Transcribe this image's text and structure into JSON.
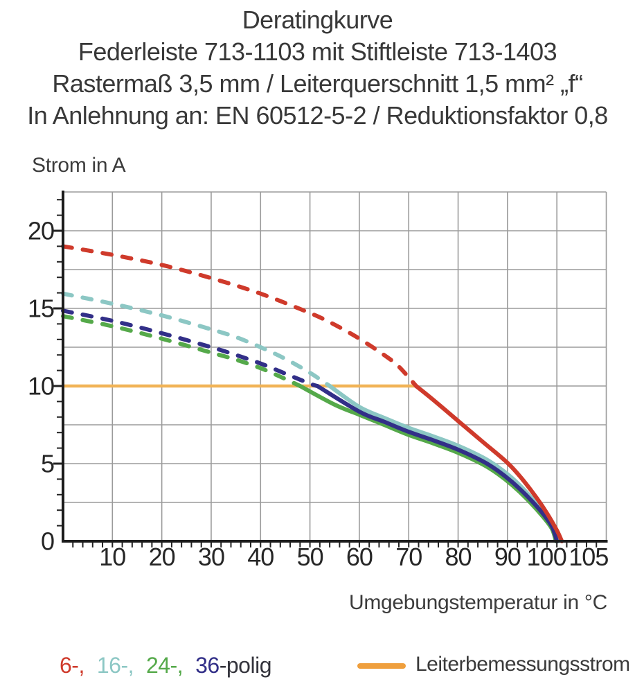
{
  "header": {
    "lines": [
      "Deratingkurve",
      "Federleiste 713-1103 mit Stiftleiste 713-1403",
      "Rastermaß 3,5 mm / Leiterquerschnitt 1,5 mm² „f“",
      "In Anlehnung an: EN 60512-5-2 / Reduktionsfaktor 0,8"
    ]
  },
  "chart_data": {
    "type": "line",
    "ylabel": "Strom in A",
    "xlabel": "Umgebungstemperatur in °C",
    "xlim": [
      0,
      110
    ],
    "ylim": [
      0,
      22.5
    ],
    "grid": true,
    "x_gridline_step": 10,
    "y_gridline_step": 2.5,
    "x_minor_tick_step": 2,
    "y_minor_tick_step": 1,
    "y_major_tick_step": 5,
    "xticks": [
      {
        "v": 10,
        "label": "10"
      },
      {
        "v": 20,
        "label": "20"
      },
      {
        "v": 30,
        "label": "30"
      },
      {
        "v": 40,
        "label": "40"
      },
      {
        "v": 50,
        "label": "50"
      },
      {
        "v": 60,
        "label": "60"
      },
      {
        "v": 70,
        "label": "70"
      },
      {
        "v": 80,
        "label": "80"
      },
      {
        "v": 90,
        "label": "90"
      },
      {
        "v": 100,
        "label": "100",
        "lx": 97.9
      },
      {
        "v": 105,
        "label": "105",
        "lx": 106.4
      }
    ],
    "yticks": [
      {
        "v": 0,
        "label": "0"
      },
      {
        "v": 5,
        "label": "5"
      },
      {
        "v": 10,
        "label": "10"
      },
      {
        "v": 15,
        "label": "15"
      },
      {
        "v": 20,
        "label": "20"
      }
    ],
    "rated_current_line": {
      "value": 10,
      "t_start": 0,
      "t_end": 71.5,
      "color": "#f1b356"
    },
    "series": [
      {
        "name": "24-polig",
        "color": "#55a94a",
        "dash_until": 48,
        "points": [
          [
            0,
            14.5
          ],
          [
            10,
            13.85
          ],
          [
            20,
            13.05
          ],
          [
            30,
            12.15
          ],
          [
            35,
            11.7
          ],
          [
            40,
            11.15
          ],
          [
            44,
            10.6
          ],
          [
            48,
            10.0
          ],
          [
            55,
            8.8
          ],
          [
            60,
            8.15
          ],
          [
            65,
            7.5
          ],
          [
            70,
            6.85
          ],
          [
            75,
            6.3
          ],
          [
            80,
            5.7
          ],
          [
            85,
            4.95
          ],
          [
            88,
            4.35
          ],
          [
            91,
            3.6
          ],
          [
            94,
            2.7
          ],
          [
            97,
            1.65
          ],
          [
            99,
            0.8
          ],
          [
            99.8,
            0
          ]
        ]
      },
      {
        "name": "16-polig",
        "color": "#8cc7c4",
        "dash_until": 54,
        "points": [
          [
            0,
            15.95
          ],
          [
            10,
            15.3
          ],
          [
            20,
            14.55
          ],
          [
            30,
            13.65
          ],
          [
            35,
            13.15
          ],
          [
            40,
            12.5
          ],
          [
            45,
            11.75
          ],
          [
            50,
            10.85
          ],
          [
            54,
            10.0
          ],
          [
            60,
            8.65
          ],
          [
            65,
            7.95
          ],
          [
            70,
            7.3
          ],
          [
            75,
            6.75
          ],
          [
            80,
            6.15
          ],
          [
            85,
            5.4
          ],
          [
            88,
            4.8
          ],
          [
            91,
            4.05
          ],
          [
            94,
            3.1
          ],
          [
            97,
            2.0
          ],
          [
            99,
            1.1
          ],
          [
            100.3,
            0
          ]
        ]
      },
      {
        "name": "36-polig",
        "color": "#322f88",
        "dash_until": 51.5,
        "points": [
          [
            0,
            14.85
          ],
          [
            10,
            14.2
          ],
          [
            20,
            13.4
          ],
          [
            30,
            12.5
          ],
          [
            35,
            12.0
          ],
          [
            40,
            11.45
          ],
          [
            45,
            10.8
          ],
          [
            50,
            10.15
          ],
          [
            51.5,
            10.0
          ],
          [
            60,
            8.35
          ],
          [
            65,
            7.7
          ],
          [
            70,
            7.05
          ],
          [
            75,
            6.5
          ],
          [
            80,
            5.9
          ],
          [
            85,
            5.15
          ],
          [
            88,
            4.55
          ],
          [
            91,
            3.8
          ],
          [
            94,
            2.9
          ],
          [
            97,
            1.85
          ],
          [
            99,
            0.95
          ],
          [
            100,
            0
          ]
        ]
      },
      {
        "name": "6-polig",
        "color": "#cf3a2b",
        "dash_until": 71.5,
        "points": [
          [
            0,
            19.0
          ],
          [
            10,
            18.45
          ],
          [
            20,
            17.8
          ],
          [
            30,
            16.95
          ],
          [
            40,
            15.95
          ],
          [
            50,
            14.7
          ],
          [
            55,
            13.95
          ],
          [
            60,
            13.05
          ],
          [
            65,
            12.0
          ],
          [
            68,
            11.25
          ],
          [
            71.5,
            10.0
          ],
          [
            75,
            9.1
          ],
          [
            80,
            7.75
          ],
          [
            85,
            6.4
          ],
          [
            90,
            5.05
          ],
          [
            93,
            4.0
          ],
          [
            96,
            2.75
          ],
          [
            98,
            1.8
          ],
          [
            100,
            0.7
          ],
          [
            101,
            0
          ]
        ]
      }
    ]
  },
  "legend": {
    "pole_items": [
      {
        "text": "6-,",
        "color": "#cf3a2b",
        "gap": true
      },
      {
        "text": "16-,",
        "color": "#8cc7c4",
        "gap": true
      },
      {
        "text": "24-,",
        "color": "#55a94a",
        "gap": true
      },
      {
        "text": "36",
        "color": "#322f88",
        "gap": false
      }
    ],
    "pole_suffix": {
      "text": "-polig",
      "color": "#34343c"
    },
    "rated_label": "Leiterbemessungsstrom",
    "rated_color": "#ef9f3d"
  }
}
